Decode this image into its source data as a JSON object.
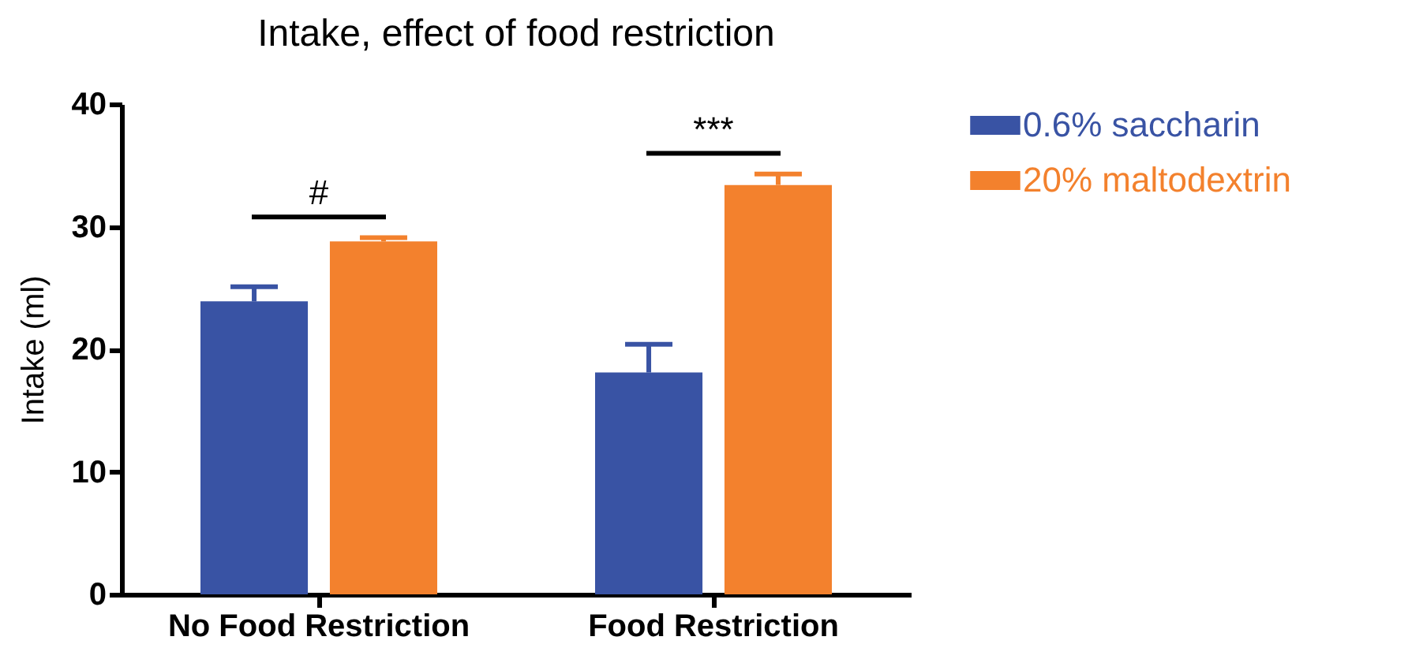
{
  "chart_data": {
    "type": "bar",
    "title": "Intake, effect of food restriction",
    "ylabel": "Intake (ml)",
    "categories": [
      "No Food Restriction",
      "Food Restriction"
    ],
    "series": [
      {
        "name": "0.6% saccharin",
        "color": "#3953a4",
        "values": [
          23.9,
          18.1
        ],
        "errors": [
          [
            23.9,
            25.1
          ],
          [
            18.1,
            20.4
          ]
        ]
      },
      {
        "name": "20% maltodextrin",
        "color": "#f3812d",
        "values": [
          28.8,
          33.4
        ],
        "errors": [
          [
            28.8,
            29.1
          ],
          [
            33.4,
            34.3
          ]
        ]
      }
    ],
    "ylim": [
      0,
      40
    ],
    "yticks": [
      0,
      10,
      20,
      30,
      40
    ],
    "grid": false,
    "legend": "top right",
    "annotations": [
      "#",
      "***"
    ]
  }
}
